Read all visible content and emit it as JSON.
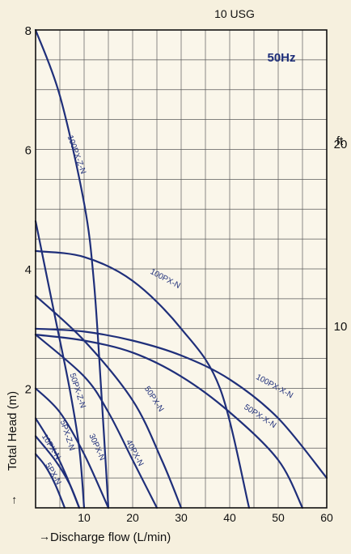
{
  "chart_data": {
    "type": "line",
    "top_label": "10 USG",
    "frequency_label": "50Hz",
    "xlabel": "Discharge flow  (L/min)",
    "ylabel": "Total Head  (m)",
    "secondary_ylabel": "ft",
    "xlim": [
      0,
      60
    ],
    "ylim": [
      0,
      8
    ],
    "x_ticks": [
      "10",
      "20",
      "30",
      "40",
      "50",
      "60"
    ],
    "y_ticks": [
      "2",
      "4",
      "6",
      "8"
    ],
    "secondary_y_ticks": [
      {
        "label": "10",
        "m": 3.05
      },
      {
        "label": "20",
        "m": 6.1
      }
    ],
    "grid": true,
    "line_color": "#1f2f7a",
    "series": [
      {
        "name": "100PX-Z-N",
        "points": [
          [
            0,
            8
          ],
          [
            5,
            6.9
          ],
          [
            10,
            5.1
          ],
          [
            12,
            3.8
          ],
          [
            13.5,
            2.0
          ],
          [
            15,
            0
          ]
        ]
      },
      {
        "name": "100PX-N",
        "points": [
          [
            0,
            4.3
          ],
          [
            10,
            4.2
          ],
          [
            20,
            3.8
          ],
          [
            30,
            3.0
          ],
          [
            38,
            2.0
          ],
          [
            44,
            0
          ]
        ]
      },
      {
        "name": "100PX-X-N",
        "points": [
          [
            0,
            3.0
          ],
          [
            10,
            2.95
          ],
          [
            20,
            2.8
          ],
          [
            30,
            2.55
          ],
          [
            40,
            2.15
          ],
          [
            50,
            1.5
          ],
          [
            60,
            0.5
          ]
        ]
      },
      {
        "name": "50PX-X-N",
        "points": [
          [
            0,
            2.9
          ],
          [
            10,
            2.8
          ],
          [
            20,
            2.6
          ],
          [
            30,
            2.2
          ],
          [
            40,
            1.6
          ],
          [
            50,
            0.8
          ],
          [
            55,
            0
          ]
        ]
      },
      {
        "name": "50PX-N",
        "points": [
          [
            0,
            3.55
          ],
          [
            10,
            2.8
          ],
          [
            20,
            1.8
          ],
          [
            26,
            0.8
          ],
          [
            30,
            0
          ]
        ]
      },
      {
        "name": "40PX-N",
        "points": [
          [
            0,
            2.9
          ],
          [
            10,
            2.2
          ],
          [
            15,
            1.6
          ],
          [
            20,
            0.8
          ],
          [
            25,
            0
          ]
        ]
      },
      {
        "name": "50PX-Z-N",
        "points": [
          [
            0,
            4.8
          ],
          [
            4,
            3.2
          ],
          [
            7,
            2.0
          ],
          [
            9,
            1.0
          ],
          [
            10,
            0
          ]
        ]
      },
      {
        "name": "30PX-N",
        "points": [
          [
            0,
            2.0
          ],
          [
            5,
            1.6
          ],
          [
            10,
            0.9
          ],
          [
            15,
            0
          ]
        ]
      },
      {
        "name": "5PX-Z-N",
        "points": [
          [
            0,
            1.5
          ],
          [
            3,
            1.1
          ],
          [
            6,
            0.6
          ],
          [
            9,
            0
          ]
        ]
      },
      {
        "name": "10PX-N",
        "points": [
          [
            0,
            1.2
          ],
          [
            4,
            0.8
          ],
          [
            7,
            0.4
          ],
          [
            9,
            0
          ]
        ]
      },
      {
        "name": "5PX-N",
        "points": [
          [
            0,
            0.9
          ],
          [
            2,
            0.7
          ],
          [
            4,
            0.4
          ],
          [
            6,
            0
          ]
        ]
      }
    ],
    "curve_labels": [
      {
        "text": "100PX-Z-N",
        "series": 0,
        "x": 8.0,
        "y": 5.9,
        "angle": 70
      },
      {
        "text": "100PX-N",
        "series": 1,
        "x": 26.5,
        "y": 3.8,
        "angle": 28
      },
      {
        "text": "100PX-X-N",
        "series": 2,
        "x": 49,
        "y": 2.0,
        "angle": 29
      },
      {
        "text": "50PX-X-N",
        "series": 3,
        "x": 46,
        "y": 1.5,
        "angle": 33
      },
      {
        "text": "50PX-N",
        "series": 4,
        "x": 24,
        "y": 1.8,
        "angle": 57
      },
      {
        "text": "40PX-N",
        "series": 5,
        "x": 20,
        "y": 0.9,
        "angle": 62
      },
      {
        "text": "50PX-Z-N",
        "series": 6,
        "x": 8.2,
        "y": 1.95,
        "angle": 72
      },
      {
        "text": "30PX-N",
        "series": 7,
        "x": 12.2,
        "y": 1.0,
        "angle": 66
      },
      {
        "text": "5PX-Z-N",
        "series": 8,
        "x": 6.1,
        "y": 1.2,
        "angle": 72
      },
      {
        "text": "10PX-N",
        "series": 9,
        "x": 2.8,
        "y": 1.0,
        "angle": 58
      },
      {
        "text": "5PX-N",
        "series": 10,
        "x": 3.2,
        "y": 0.55,
        "angle": 60
      }
    ]
  }
}
